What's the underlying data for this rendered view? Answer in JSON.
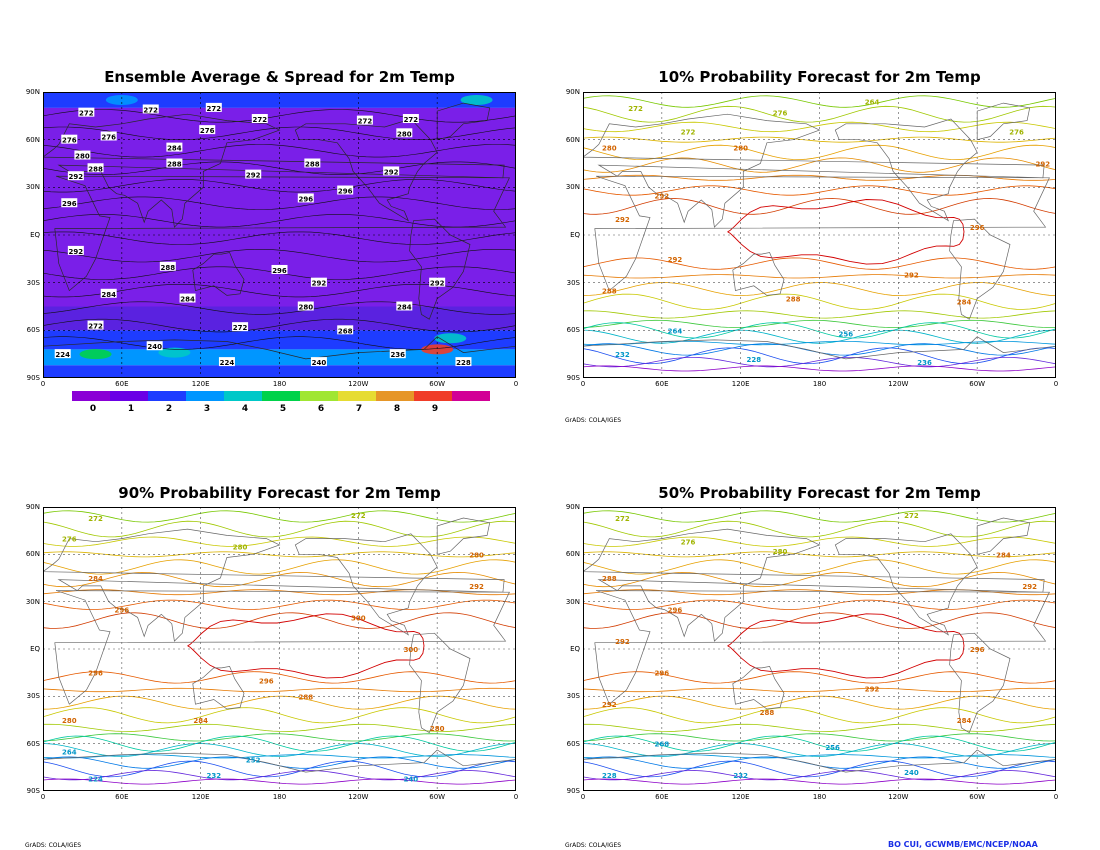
{
  "panels": [
    {
      "id": "p1",
      "title": "Ensemble Average & Spread for 2m Temp",
      "kind": "spread"
    },
    {
      "id": "p2",
      "title": "10% Probability Forecast for 2m Temp",
      "kind": "contour"
    },
    {
      "id": "p3",
      "title": "90% Probability Forecast for 2m Temp",
      "kind": "contour"
    },
    {
      "id": "p4",
      "title": "50% Probability Forecast for 2m Temp",
      "kind": "contour"
    }
  ],
  "lat_labels": [
    "90N",
    "60N",
    "30N",
    "EQ",
    "30S",
    "60S",
    "90S"
  ],
  "lon_labels": [
    "0",
    "60E",
    "120E",
    "180",
    "120W",
    "60W",
    "0"
  ],
  "colorbar": {
    "labels": [
      "0",
      "1",
      "2",
      "3",
      "4",
      "5",
      "6",
      "7",
      "8",
      "9"
    ],
    "colors": [
      "#8a00d6",
      "#6a00e6",
      "#1e3cff",
      "#0096ff",
      "#00c8c8",
      "#00d24a",
      "#a0e632",
      "#e6dc32",
      "#e69628",
      "#f03c28",
      "#d20096"
    ]
  },
  "credits": {
    "grads": "GrADS: COLA/IGES",
    "footer": "BO CUI, GCWMB/EMC/NCEP/NOAA"
  },
  "chart_data": [
    {
      "type": "heatmap",
      "title": "Ensemble Average & Spread for 2m Temp",
      "x_ticks": [
        "0",
        "60E",
        "120E",
        "180",
        "120W",
        "60W",
        "0"
      ],
      "y_ticks": [
        "90N",
        "60N",
        "30N",
        "EQ",
        "30S",
        "60S",
        "90S"
      ],
      "colorbar_levels": [
        0,
        1,
        2,
        3,
        4,
        5,
        6,
        7,
        8,
        9
      ],
      "contour_labels": [
        {
          "lon": 33,
          "lat": 77,
          "value": 272
        },
        {
          "lon": 82,
          "lat": 79,
          "value": 272
        },
        {
          "lon": 130,
          "lat": 80,
          "value": 272
        },
        {
          "lon": 165,
          "lat": 73,
          "value": 272
        },
        {
          "lon": 245,
          "lat": 72,
          "value": 272
        },
        {
          "lon": 280,
          "lat": 73,
          "value": 272
        },
        {
          "lon": 20,
          "lat": 60,
          "value": 276
        },
        {
          "lon": 50,
          "lat": 62,
          "value": 276
        },
        {
          "lon": 125,
          "lat": 66,
          "value": 276
        },
        {
          "lon": 275,
          "lat": 64,
          "value": 280
        },
        {
          "lon": 30,
          "lat": 50,
          "value": 280
        },
        {
          "lon": 100,
          "lat": 55,
          "value": 284
        },
        {
          "lon": 40,
          "lat": 42,
          "value": 288
        },
        {
          "lon": 100,
          "lat": 45,
          "value": 288
        },
        {
          "lon": 205,
          "lat": 45,
          "value": 288
        },
        {
          "lon": 25,
          "lat": 37,
          "value": 292
        },
        {
          "lon": 160,
          "lat": 38,
          "value": 292
        },
        {
          "lon": 265,
          "lat": 40,
          "value": 292
        },
        {
          "lon": 20,
          "lat": 20,
          "value": 296
        },
        {
          "lon": 200,
          "lat": 23,
          "value": 296
        },
        {
          "lon": 230,
          "lat": 28,
          "value": 296
        },
        {
          "lon": 25,
          "lat": -10,
          "value": 292
        },
        {
          "lon": 95,
          "lat": -20,
          "value": 288
        },
        {
          "lon": 180,
          "lat": -22,
          "value": 296
        },
        {
          "lon": 210,
          "lat": -30,
          "value": 292
        },
        {
          "lon": 300,
          "lat": -30,
          "value": 292
        },
        {
          "lon": 50,
          "lat": -37,
          "value": 284
        },
        {
          "lon": 110,
          "lat": -40,
          "value": 284
        },
        {
          "lon": 200,
          "lat": -45,
          "value": 280
        },
        {
          "lon": 275,
          "lat": -45,
          "value": 284
        },
        {
          "lon": 40,
          "lat": -57,
          "value": 272
        },
        {
          "lon": 150,
          "lat": -58,
          "value": 272
        },
        {
          "lon": 230,
          "lat": -60,
          "value": 268
        },
        {
          "lon": 15,
          "lat": -75,
          "value": 224
        },
        {
          "lon": 85,
          "lat": -70,
          "value": 240
        },
        {
          "lon": 140,
          "lat": -80,
          "value": 224
        },
        {
          "lon": 210,
          "lat": -80,
          "value": 240
        },
        {
          "lon": 270,
          "lat": -75,
          "value": 236
        },
        {
          "lon": 320,
          "lat": -80,
          "value": 228
        }
      ]
    },
    {
      "type": "line",
      "title": "10% Probability Forecast for 2m Temp",
      "x_ticks": [
        "0",
        "60E",
        "120E",
        "180",
        "120W",
        "60W",
        "0"
      ],
      "y_ticks": [
        "90N",
        "60N",
        "30N",
        "EQ",
        "30S",
        "60S",
        "90S"
      ],
      "contour_labels": [
        {
          "lon": 220,
          "lat": 84,
          "value": 264
        },
        {
          "lon": 40,
          "lat": 80,
          "value": 272
        },
        {
          "lon": 150,
          "lat": 77,
          "value": 276
        },
        {
          "lon": 80,
          "lat": 65,
          "value": 272
        },
        {
          "lon": 330,
          "lat": 65,
          "value": 276
        },
        {
          "lon": 20,
          "lat": 55,
          "value": 280
        },
        {
          "lon": 120,
          "lat": 55,
          "value": 280
        },
        {
          "lon": 350,
          "lat": 45,
          "value": 292
        },
        {
          "lon": 60,
          "lat": 25,
          "value": 292
        },
        {
          "lon": 30,
          "lat": 10,
          "value": 292
        },
        {
          "lon": 300,
          "lat": 5,
          "value": 296
        },
        {
          "lon": 70,
          "lat": -15,
          "value": 292
        },
        {
          "lon": 250,
          "lat": -25,
          "value": 292
        },
        {
          "lon": 20,
          "lat": -35,
          "value": 288
        },
        {
          "lon": 160,
          "lat": -40,
          "value": 288
        },
        {
          "lon": 290,
          "lat": -42,
          "value": 284
        },
        {
          "lon": 70,
          "lat": -60,
          "value": 264
        },
        {
          "lon": 200,
          "lat": -62,
          "value": 256
        },
        {
          "lon": 30,
          "lat": -75,
          "value": 232
        },
        {
          "lon": 130,
          "lat": -78,
          "value": 228
        },
        {
          "lon": 260,
          "lat": -80,
          "value": 236
        }
      ]
    },
    {
      "type": "line",
      "title": "90% Probability Forecast for 2m Temp",
      "x_ticks": [
        "0",
        "60E",
        "120E",
        "180",
        "120W",
        "60W",
        "0"
      ],
      "y_ticks": [
        "90N",
        "60N",
        "30N",
        "EQ",
        "30S",
        "60S",
        "90S"
      ],
      "contour_labels": [
        {
          "lon": 40,
          "lat": 83,
          "value": 272
        },
        {
          "lon": 240,
          "lat": 85,
          "value": 272
        },
        {
          "lon": 20,
          "lat": 70,
          "value": 276
        },
        {
          "lon": 150,
          "lat": 65,
          "value": 280
        },
        {
          "lon": 330,
          "lat": 60,
          "value": 280
        },
        {
          "lon": 40,
          "lat": 45,
          "value": 284
        },
        {
          "lon": 330,
          "lat": 40,
          "value": 292
        },
        {
          "lon": 60,
          "lat": 25,
          "value": 296
        },
        {
          "lon": 240,
          "lat": 20,
          "value": 300
        },
        {
          "lon": 280,
          "lat": 0,
          "value": 300
        },
        {
          "lon": 40,
          "lat": -15,
          "value": 296
        },
        {
          "lon": 170,
          "lat": -20,
          "value": 296
        },
        {
          "lon": 200,
          "lat": -30,
          "value": 288
        },
        {
          "lon": 20,
          "lat": -45,
          "value": 280
        },
        {
          "lon": 120,
          "lat": -45,
          "value": 284
        },
        {
          "lon": 300,
          "lat": -50,
          "value": 280
        },
        {
          "lon": 20,
          "lat": -65,
          "value": 264
        },
        {
          "lon": 160,
          "lat": -70,
          "value": 252
        },
        {
          "lon": 40,
          "lat": -82,
          "value": 224
        },
        {
          "lon": 130,
          "lat": -80,
          "value": 232
        },
        {
          "lon": 280,
          "lat": -82,
          "value": 240
        }
      ]
    },
    {
      "type": "line",
      "title": "50% Probability Forecast for 2m Temp",
      "x_ticks": [
        "0",
        "60E",
        "120E",
        "180",
        "120W",
        "60W",
        "0"
      ],
      "y_ticks": [
        "90N",
        "60N",
        "30N",
        "EQ",
        "30S",
        "60S",
        "90S"
      ],
      "contour_labels": [
        {
          "lon": 30,
          "lat": 83,
          "value": 272
        },
        {
          "lon": 250,
          "lat": 85,
          "value": 272
        },
        {
          "lon": 80,
          "lat": 68,
          "value": 276
        },
        {
          "lon": 150,
          "lat": 62,
          "value": 280
        },
        {
          "lon": 320,
          "lat": 60,
          "value": 284
        },
        {
          "lon": 20,
          "lat": 45,
          "value": 288
        },
        {
          "lon": 340,
          "lat": 40,
          "value": 292
        },
        {
          "lon": 70,
          "lat": 25,
          "value": 296
        },
        {
          "lon": 30,
          "lat": 5,
          "value": 292
        },
        {
          "lon": 300,
          "lat": 0,
          "value": 296
        },
        {
          "lon": 60,
          "lat": -15,
          "value": 296
        },
        {
          "lon": 220,
          "lat": -25,
          "value": 292
        },
        {
          "lon": 20,
          "lat": -35,
          "value": 292
        },
        {
          "lon": 140,
          "lat": -40,
          "value": 288
        },
        {
          "lon": 290,
          "lat": -45,
          "value": 284
        },
        {
          "lon": 60,
          "lat": -60,
          "value": 268
        },
        {
          "lon": 190,
          "lat": -62,
          "value": 256
        },
        {
          "lon": 20,
          "lat": -80,
          "value": 228
        },
        {
          "lon": 120,
          "lat": -80,
          "value": 232
        },
        {
          "lon": 250,
          "lat": -78,
          "value": 240
        }
      ]
    }
  ]
}
